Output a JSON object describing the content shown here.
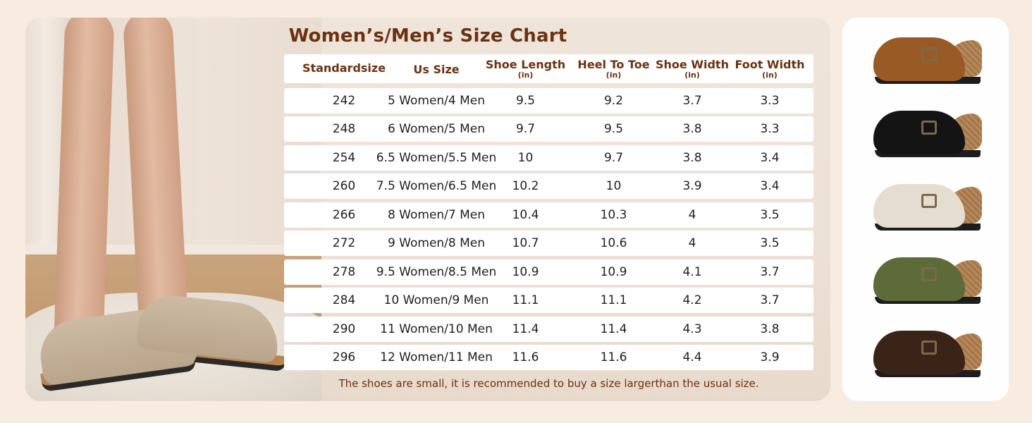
{
  "title": "Women’s/Men’s Size Chart",
  "headers": {
    "standardsize": "Standardsize",
    "us_size": "Us Size",
    "shoe_length": "Shoe Length",
    "heel_to_toe": "Heel To Toe",
    "shoe_width": "Shoe Width",
    "foot_width": "Foot Width",
    "unit": "(in)"
  },
  "rows": [
    {
      "std": "242",
      "us": "5 Women/4 Men",
      "len": "9.5",
      "htt": "9.2",
      "sw": "3.7",
      "fw": "3.3"
    },
    {
      "std": "248",
      "us": "6 Women/5 Men",
      "len": "9.7",
      "htt": "9.5",
      "sw": "3.8",
      "fw": "3.3"
    },
    {
      "std": "254",
      "us": "6.5 Women/5.5 Men",
      "len": "10",
      "htt": "9.7",
      "sw": "3.8",
      "fw": "3.4"
    },
    {
      "std": "260",
      "us": "7.5 Women/6.5 Men",
      "len": "10.2",
      "htt": "10",
      "sw": "3.9",
      "fw": "3.4"
    },
    {
      "std": "266",
      "us": "8 Women/7 Men",
      "len": "10.4",
      "htt": "10.3",
      "sw": "4",
      "fw": "3.5"
    },
    {
      "std": "272",
      "us": "9 Women/8 Men",
      "len": "10.7",
      "htt": "10.6",
      "sw": "4",
      "fw": "3.5"
    },
    {
      "std": "278",
      "us": "9.5 Women/8.5 Men",
      "len": "10.9",
      "htt": "10.9",
      "sw": "4.1",
      "fw": "3.7"
    },
    {
      "std": "284",
      "us": "10 Women/9 Men",
      "len": "11.1",
      "htt": "11.1",
      "sw": "4.2",
      "fw": "3.7"
    },
    {
      "std": "290",
      "us": "11 Women/10 Men",
      "len": "11.4",
      "htt": "11.4",
      "sw": "4.3",
      "fw": "3.8"
    },
    {
      "std": "296",
      "us": "12 Women/11 Men",
      "len": "11.6",
      "htt": "11.6",
      "sw": "4.4",
      "fw": "3.9"
    }
  ],
  "note": "The shoes are small, it is recommended to buy a size largerthan the usual size.",
  "shoe_colors": [
    "#9a5a25",
    "#141414",
    "#e6ddd1",
    "#5c6b38",
    "#3a2418"
  ],
  "colors": {
    "accent": "#6b3210",
    "background": "#f8ece0"
  }
}
